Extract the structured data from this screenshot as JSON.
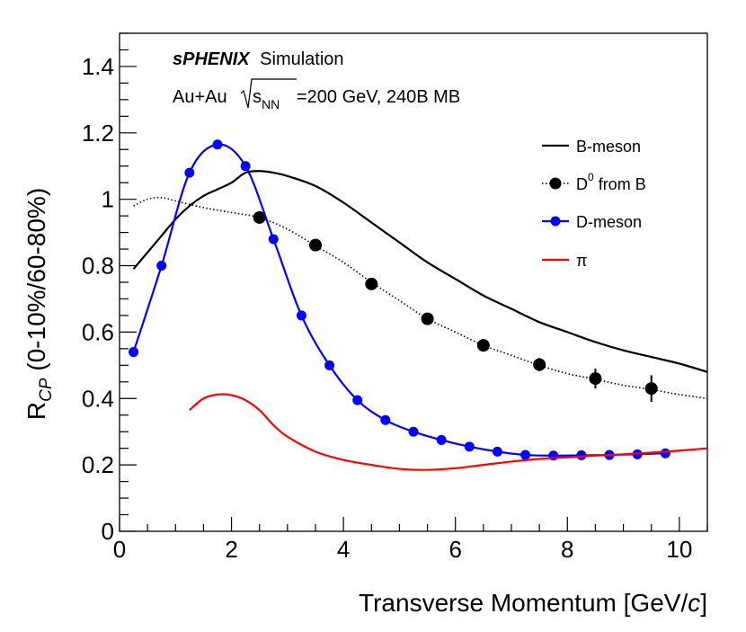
{
  "chart_data": {
    "type": "line",
    "annotation": {
      "experiment": "sPHENIX",
      "tag": "Simulation",
      "system": "Au+Au",
      "energy_prefix": "s",
      "energy_subscript": "NN",
      "energy_value": "=200 GeV, 240B MB"
    },
    "xlabel_main": "Transverse Momentum [GeV/",
    "xlabel_italic": "c",
    "xlabel_end": "]",
    "ylabel_main": "R",
    "ylabel_sub": "CP",
    "ylabel_rest": " (0-10%/60-80%)",
    "xlim": [
      0,
      10.5
    ],
    "ylim": [
      0,
      1.5
    ],
    "xticks": [
      0,
      2,
      4,
      6,
      8,
      10
    ],
    "yticks": [
      0,
      0.2,
      0.4,
      0.6,
      0.8,
      1,
      1.2,
      1.4
    ],
    "xtick_labels": [
      "0",
      "2",
      "4",
      "6",
      "8",
      "10"
    ],
    "ytick_labels": [
      "0",
      "0.2",
      "0.4",
      "0.6",
      "0.8",
      "1",
      "1.2",
      "1.4"
    ],
    "legend": [
      {
        "label": "B-meson",
        "style": "solid",
        "color": "#000000"
      },
      {
        "label": "D",
        "sup": "0",
        "label_rest": " from B",
        "style": "dotted-marker",
        "color": "#000000"
      },
      {
        "label": "D-meson",
        "style": "line-marker",
        "color": "#0000ff"
      },
      {
        "label": "π",
        "style": "solid",
        "color": "#ff0000"
      }
    ],
    "series": [
      {
        "name": "B-meson",
        "color": "#000000",
        "line": "solid",
        "x": [
          0.25,
          0.5,
          0.75,
          1.0,
          1.25,
          1.5,
          1.75,
          2.0,
          2.25,
          2.5,
          2.75,
          3.0,
          3.5,
          4.0,
          4.5,
          5.0,
          5.5,
          6.0,
          6.5,
          7.0,
          7.5,
          8.0,
          8.5,
          9.0,
          9.5,
          10.0,
          10.5
        ],
        "y": [
          0.79,
          0.84,
          0.89,
          0.94,
          0.98,
          1.01,
          1.03,
          1.05,
          1.08,
          1.085,
          1.08,
          1.07,
          1.04,
          0.99,
          0.93,
          0.87,
          0.81,
          0.76,
          0.71,
          0.67,
          0.63,
          0.6,
          0.57,
          0.545,
          0.525,
          0.505,
          0.48
        ]
      },
      {
        "name": "D0 from B (curve)",
        "color": "#000000",
        "line": "dotted",
        "x": [
          0.25,
          0.5,
          0.75,
          1.0,
          1.5,
          2.0,
          2.5,
          3.0,
          3.5,
          4.0,
          4.5,
          5.0,
          5.5,
          6.0,
          6.5,
          7.0,
          7.5,
          8.0,
          8.5,
          9.0,
          9.5,
          10.0,
          10.5
        ],
        "y": [
          0.98,
          1.0,
          1.005,
          0.995,
          0.975,
          0.96,
          0.945,
          0.91,
          0.86,
          0.81,
          0.75,
          0.695,
          0.64,
          0.6,
          0.56,
          0.53,
          0.5,
          0.475,
          0.458,
          0.44,
          0.427,
          0.412,
          0.4
        ]
      },
      {
        "name": "D0 from B (points)",
        "color": "#000000",
        "line": "none",
        "marker": "circle-large",
        "x": [
          2.5,
          3.5,
          4.5,
          5.5,
          6.5,
          7.5,
          8.5,
          9.5
        ],
        "y": [
          0.945,
          0.862,
          0.745,
          0.64,
          0.56,
          0.502,
          0.46,
          0.43
        ],
        "err": [
          0.0,
          0.0,
          0.0,
          0.0,
          0.0,
          0.02,
          0.03,
          0.04
        ]
      },
      {
        "name": "D-meson",
        "color": "#0000ff",
        "line": "solid",
        "marker": "circle",
        "x": [
          0.25,
          0.75,
          1.25,
          1.75,
          2.25,
          2.75,
          3.25,
          3.75,
          4.25,
          4.75,
          5.25,
          5.75,
          6.25,
          6.75,
          7.25,
          7.75,
          8.25,
          8.75,
          9.25,
          9.75
        ],
        "y": [
          0.54,
          0.8,
          1.08,
          1.165,
          1.1,
          0.88,
          0.65,
          0.5,
          0.395,
          0.335,
          0.3,
          0.275,
          0.255,
          0.24,
          0.23,
          0.228,
          0.229,
          0.23,
          0.232,
          0.235
        ]
      },
      {
        "name": "π",
        "color": "#ff0000",
        "line": "solid",
        "x": [
          1.25,
          1.5,
          1.75,
          2.0,
          2.25,
          2.5,
          2.75,
          3.0,
          3.5,
          4.0,
          4.5,
          5.0,
          5.5,
          6.0,
          6.5,
          7.0,
          7.5,
          8.0,
          8.5,
          9.0,
          9.5,
          10.0,
          10.5
        ],
        "y": [
          0.365,
          0.4,
          0.412,
          0.41,
          0.395,
          0.365,
          0.32,
          0.285,
          0.24,
          0.215,
          0.2,
          0.188,
          0.185,
          0.19,
          0.2,
          0.21,
          0.218,
          0.223,
          0.228,
          0.232,
          0.237,
          0.243,
          0.25
        ]
      }
    ]
  }
}
